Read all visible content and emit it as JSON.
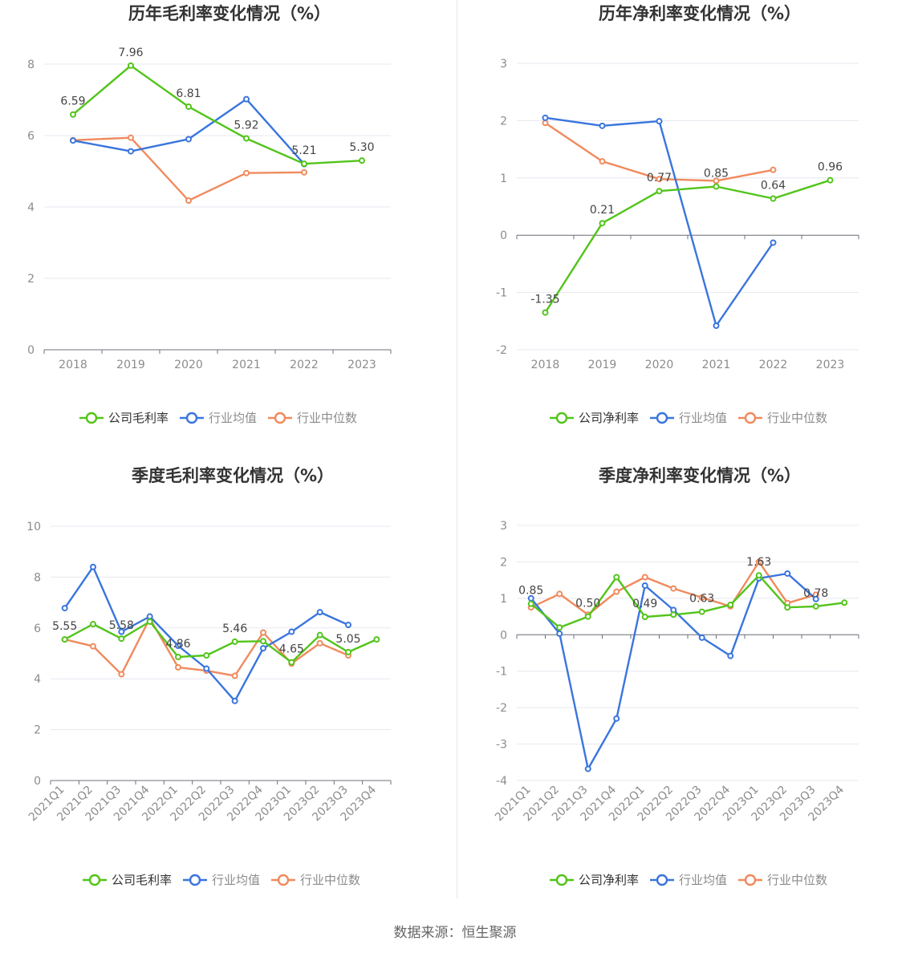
{
  "colors": {
    "company": "#52c41a",
    "industry_avg": "#3a75dd",
    "industry_median": "#f08a5d"
  },
  "legend_labels_1": {
    "company": "公司毛利率",
    "avg": "行业均值",
    "median": "行业中位数"
  },
  "legend_labels_2": {
    "company": "公司净利率",
    "avg": "行业均值",
    "median": "行业中位数"
  },
  "source": "数据来源：恒生聚源",
  "chart_data": [
    {
      "type": "line",
      "title": "历年毛利率变化情况（%）",
      "categories": [
        "2018",
        "2019",
        "2020",
        "2021",
        "2022",
        "2023"
      ],
      "ylim": [
        0,
        8
      ],
      "yticks": [
        0,
        2,
        4,
        6,
        8
      ],
      "grid": true,
      "legend_position": "bottom",
      "series": [
        {
          "name": "公司毛利率",
          "values": [
            6.59,
            7.96,
            6.81,
            5.92,
            5.21,
            5.3
          ],
          "labels": [
            "6.59",
            "7.96",
            "6.81",
            "5.92",
            "5.21",
            "5.30"
          ]
        },
        {
          "name": "行业均值",
          "values": [
            5.86,
            5.56,
            5.9,
            7.02,
            5.2,
            null
          ]
        },
        {
          "name": "行业中位数",
          "values": [
            5.87,
            5.94,
            4.18,
            4.95,
            4.97,
            null
          ]
        }
      ]
    },
    {
      "type": "line",
      "title": "历年净利率变化情况（%）",
      "categories": [
        "2018",
        "2019",
        "2020",
        "2021",
        "2022",
        "2023"
      ],
      "ylim": [
        -2,
        3
      ],
      "yticks": [
        -2,
        -1,
        0,
        1,
        2,
        3
      ],
      "grid": true,
      "legend_position": "bottom",
      "series": [
        {
          "name": "公司净利率",
          "values": [
            -1.35,
            0.21,
            0.77,
            0.85,
            0.64,
            0.96
          ],
          "labels": [
            "-1.35",
            "0.21",
            "0.77",
            "0.85",
            "0.64",
            "0.96"
          ]
        },
        {
          "name": "行业均值",
          "values": [
            2.05,
            1.91,
            1.99,
            -1.58,
            -0.13,
            null
          ]
        },
        {
          "name": "行业中位数",
          "values": [
            1.96,
            1.29,
            0.98,
            0.95,
            1.14,
            null
          ]
        }
      ]
    },
    {
      "type": "line",
      "title": "季度毛利率变化情况（%）",
      "categories": [
        "2021Q1",
        "2021Q2",
        "2021Q3",
        "2021Q4",
        "2022Q1",
        "2022Q2",
        "2022Q3",
        "2022Q4",
        "2023Q1",
        "2023Q2",
        "2023Q3",
        "2023Q4"
      ],
      "ylim": [
        0,
        10
      ],
      "yticks": [
        0,
        2,
        4,
        6,
        8,
        10
      ],
      "grid": true,
      "legend_position": "bottom",
      "series": [
        {
          "name": "公司毛利率",
          "values": [
            5.55,
            6.15,
            5.58,
            6.25,
            4.86,
            4.92,
            5.46,
            5.48,
            4.65,
            5.72,
            5.05,
            5.55
          ],
          "labels": [
            "5.55",
            "",
            "5.58",
            "",
            "4.86",
            "",
            "5.46",
            "",
            "4.65",
            "",
            "5.05",
            ""
          ]
        },
        {
          "name": "行业均值",
          "values": [
            6.78,
            8.4,
            5.85,
            6.45,
            5.3,
            4.4,
            3.13,
            5.2,
            5.85,
            6.62,
            6.12,
            null
          ]
        },
        {
          "name": "行业中位数",
          "values": [
            5.55,
            5.28,
            4.18,
            6.38,
            4.45,
            4.32,
            4.12,
            5.82,
            4.6,
            5.4,
            4.92,
            null
          ]
        }
      ]
    },
    {
      "type": "line",
      "title": "季度净利率变化情况（%）",
      "categories": [
        "2021Q1",
        "2021Q2",
        "2021Q3",
        "2021Q4",
        "2022Q1",
        "2022Q2",
        "2022Q3",
        "2022Q4",
        "2023Q1",
        "2023Q2",
        "2023Q3",
        "2023Q4"
      ],
      "ylim": [
        -4,
        3
      ],
      "yticks": [
        -4,
        -3,
        -2,
        -1,
        0,
        1,
        2,
        3
      ],
      "grid": true,
      "legend_position": "bottom",
      "series": [
        {
          "name": "公司净利率",
          "values": [
            0.85,
            0.2,
            0.5,
            1.58,
            0.49,
            0.55,
            0.63,
            0.82,
            1.63,
            0.75,
            0.78,
            0.88
          ],
          "labels": [
            "0.85",
            "",
            "0.50",
            "",
            "0.49",
            "",
            "0.63",
            "",
            "1.63",
            "",
            "0.78",
            ""
          ]
        },
        {
          "name": "行业均值",
          "values": [
            1.0,
            0.03,
            -3.68,
            -2.3,
            1.35,
            0.68,
            -0.08,
            -0.58,
            1.55,
            1.68,
            0.98,
            null
          ]
        },
        {
          "name": "行业中位数",
          "values": [
            0.75,
            1.12,
            0.55,
            1.18,
            1.58,
            1.27,
            1.02,
            0.78,
            2.0,
            0.87,
            1.1,
            null
          ]
        }
      ]
    }
  ]
}
